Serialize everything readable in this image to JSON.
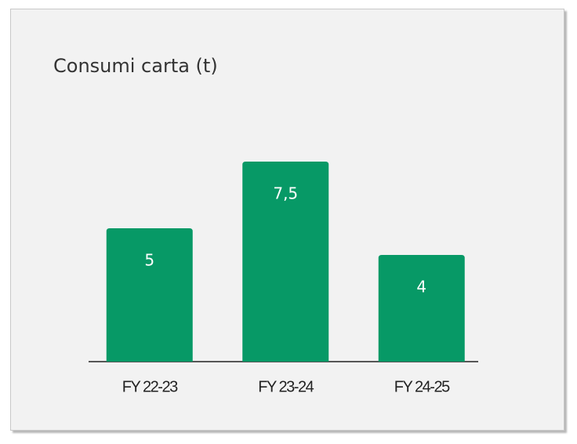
{
  "chart_data": {
    "type": "bar",
    "title": "Consumi carta (t)",
    "categories": [
      "FY 22-23",
      "FY 23-24",
      "FY 24-25"
    ],
    "values": [
      5,
      7.5,
      4
    ],
    "value_labels": [
      "5",
      "7,5",
      "4"
    ],
    "color": "#079966",
    "ylim": [
      0,
      10
    ]
  }
}
